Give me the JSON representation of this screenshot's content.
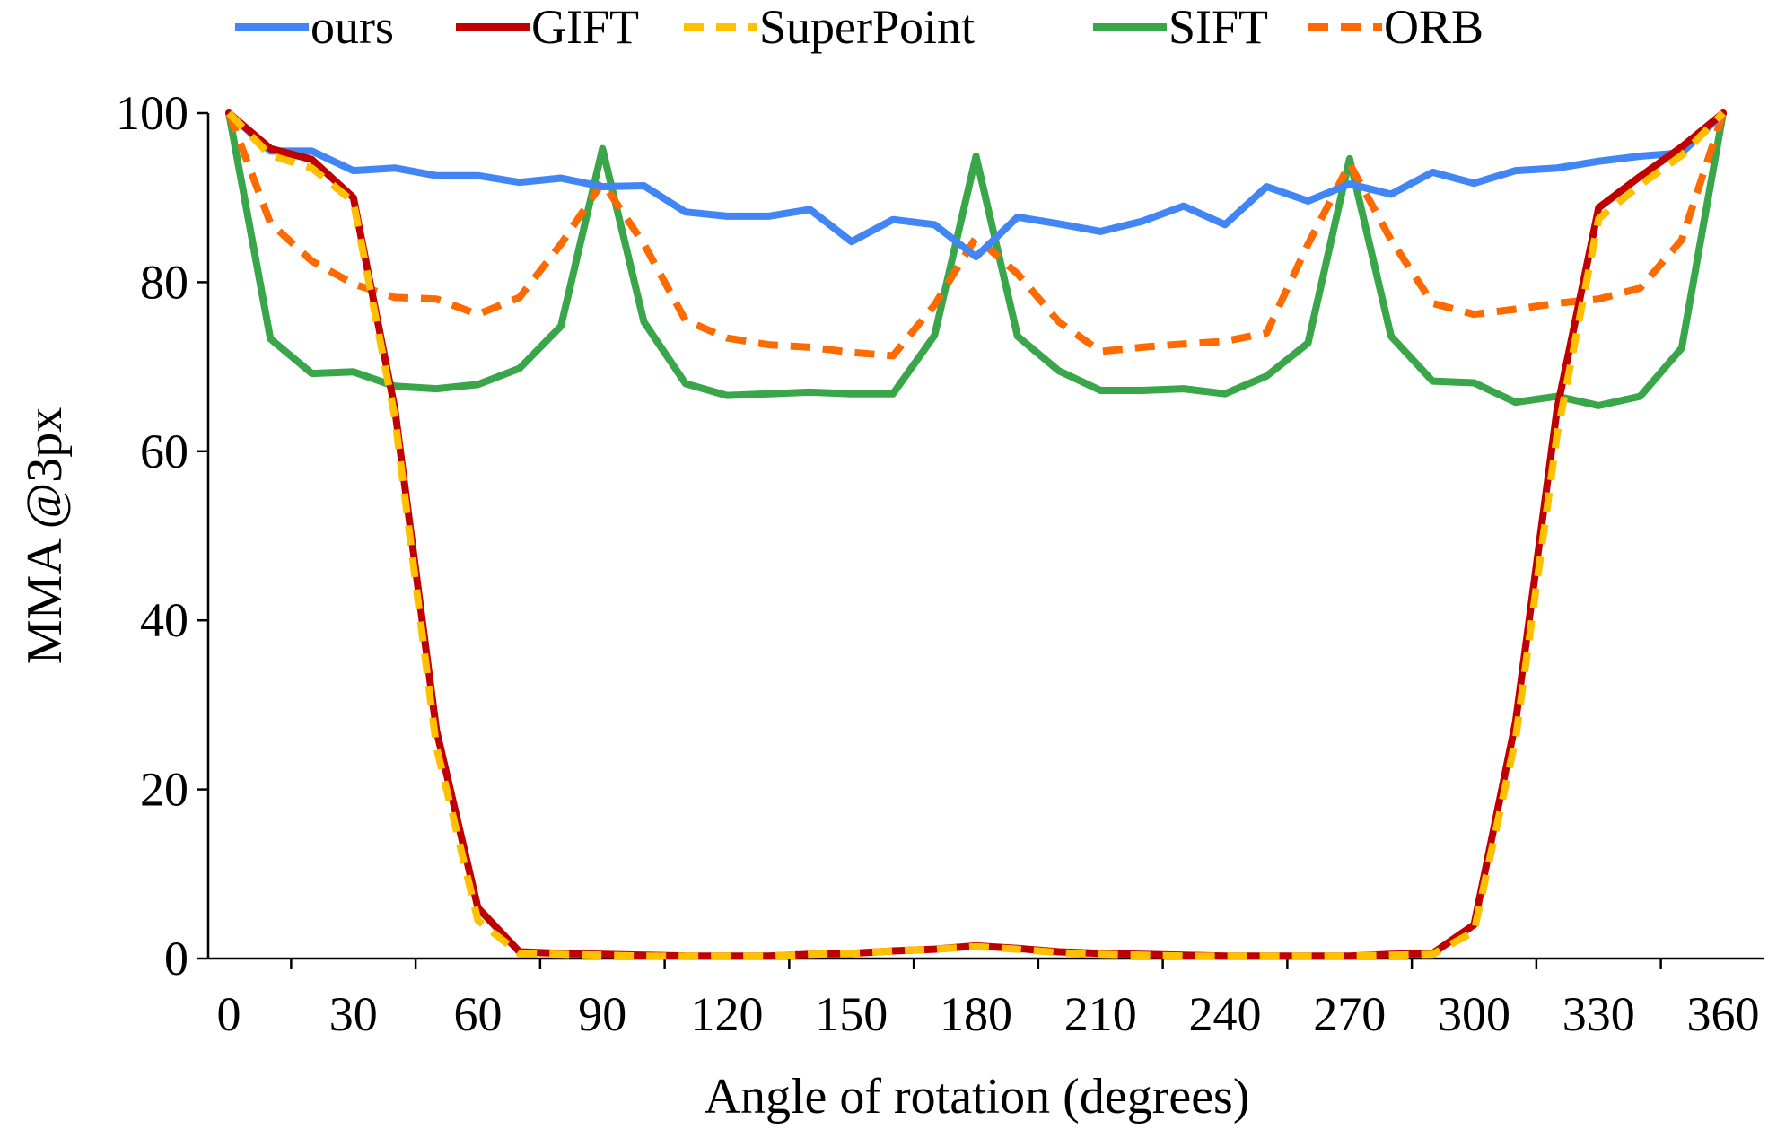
{
  "chart_data": {
    "type": "line",
    "title": "",
    "xlabel": "Angle of rotation (degrees)",
    "ylabel": "MMA @3px",
    "xlim": [
      0,
      360
    ],
    "ylim": [
      0,
      100
    ],
    "xticks": [
      0,
      30,
      60,
      90,
      120,
      150,
      180,
      210,
      240,
      270,
      300,
      330,
      360
    ],
    "yticks": [
      0,
      20,
      40,
      60,
      80,
      100
    ],
    "grid": false,
    "legend_position": "top",
    "x": [
      0,
      10,
      20,
      30,
      40,
      50,
      60,
      70,
      80,
      90,
      100,
      110,
      120,
      130,
      140,
      150,
      160,
      170,
      180,
      190,
      200,
      210,
      220,
      230,
      240,
      250,
      260,
      270,
      280,
      290,
      300,
      310,
      320,
      330,
      340,
      350,
      360
    ],
    "series": [
      {
        "name": "ours",
        "color": "#4285f4",
        "dash": "solid",
        "values": [
          100,
          95.5,
          95.5,
          93.2,
          93.5,
          92.6,
          92.6,
          91.8,
          92.3,
          91.3,
          91.4,
          88.3,
          87.8,
          87.8,
          88.6,
          84.8,
          87.4,
          86.8,
          83.0,
          87.7,
          86.9,
          86.0,
          87.2,
          89.0,
          86.8,
          91.3,
          89.6,
          91.6,
          90.4,
          93.0,
          91.7,
          93.2,
          93.5,
          94.3,
          94.9,
          95.3,
          100
        ]
      },
      {
        "name": "GIFT",
        "color": "#c00000",
        "dash": "solid",
        "values": [
          100,
          95.8,
          94.5,
          90.0,
          65.0,
          27.0,
          6.0,
          0.8,
          0.6,
          0.5,
          0.4,
          0.3,
          0.3,
          0.3,
          0.5,
          0.6,
          0.9,
          1.1,
          1.5,
          1.2,
          0.8,
          0.6,
          0.5,
          0.4,
          0.3,
          0.3,
          0.3,
          0.3,
          0.5,
          0.6,
          4.0,
          28.0,
          65.0,
          88.8,
          92.5,
          96.0,
          100
        ]
      },
      {
        "name": "SuperPoint",
        "color": "#ffc000",
        "dash": "dashed",
        "values": [
          100,
          95.0,
          93.5,
          89.5,
          64.0,
          25.0,
          4.5,
          0.6,
          0.5,
          0.4,
          0.3,
          0.3,
          0.3,
          0.3,
          0.5,
          0.6,
          0.9,
          1.1,
          1.4,
          1.1,
          0.7,
          0.5,
          0.4,
          0.3,
          0.3,
          0.3,
          0.3,
          0.3,
          0.4,
          0.5,
          3.2,
          26.0,
          62.0,
          87.5,
          91.5,
          95.0,
          100
        ]
      },
      {
        "name": "SIFT",
        "color": "#3aa64a",
        "dash": "solid",
        "values": [
          100,
          73.3,
          69.2,
          69.4,
          67.7,
          67.4,
          67.9,
          69.8,
          74.8,
          95.8,
          75.3,
          68.0,
          66.6,
          66.8,
          67.0,
          66.8,
          66.8,
          73.7,
          94.9,
          73.6,
          69.5,
          67.2,
          67.2,
          67.4,
          66.8,
          68.9,
          72.8,
          94.6,
          73.6,
          68.3,
          68.1,
          65.8,
          66.5,
          65.4,
          66.5,
          72.2,
          100
        ]
      },
      {
        "name": "ORB",
        "color": "#ff6a00",
        "dash": "dashed",
        "values": [
          100,
          87.0,
          82.5,
          79.8,
          78.2,
          78.0,
          76.2,
          78.2,
          84.5,
          91.8,
          84.5,
          75.5,
          73.4,
          72.6,
          72.3,
          71.7,
          71.3,
          77.3,
          85.3,
          81.0,
          75.3,
          71.8,
          72.3,
          72.7,
          73.0,
          74.0,
          84.5,
          94.0,
          85.0,
          77.5,
          76.2,
          76.8,
          77.5,
          78.0,
          79.3,
          85.0,
          100
        ]
      }
    ]
  }
}
